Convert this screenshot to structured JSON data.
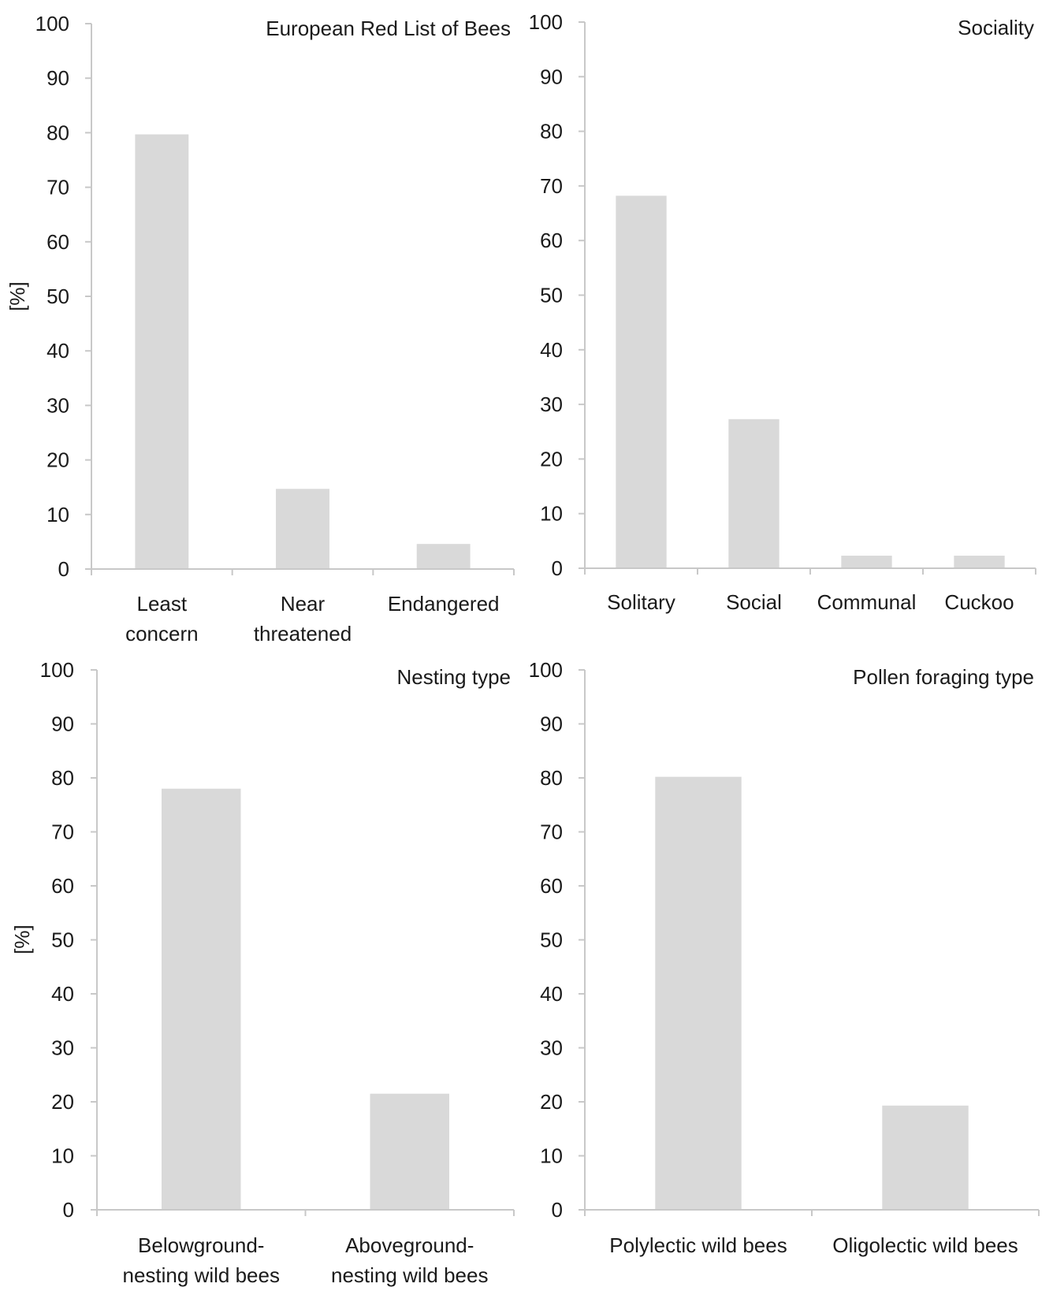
{
  "chart_data": [
    {
      "type": "bar",
      "title": "European Red List of Bees",
      "ylabel": "[%]",
      "ylim": [
        0,
        100
      ],
      "yticks": [
        "0",
        "10",
        "20",
        "30",
        "40",
        "50",
        "60",
        "70",
        "80",
        "90",
        "100"
      ],
      "categories": [
        [
          "Least",
          "concern"
        ],
        [
          "Near",
          "threatened"
        ],
        [
          "Endangered"
        ]
      ],
      "values": [
        79.7,
        14.7,
        4.6
      ],
      "bar_color": "#d9d9d9"
    },
    {
      "type": "bar",
      "title": "Sociality",
      "ylabel": "",
      "ylim": [
        0,
        100
      ],
      "yticks": [
        "0",
        "10",
        "20",
        "30",
        "40",
        "50",
        "60",
        "70",
        "80",
        "90",
        "100"
      ],
      "categories": [
        [
          "Solitary"
        ],
        [
          "Social"
        ],
        [
          "Communal"
        ],
        [
          "Cuckoo"
        ]
      ],
      "values": [
        68.2,
        27.3,
        2.3,
        2.3
      ],
      "bar_color": "#d9d9d9"
    },
    {
      "type": "bar",
      "title": "Nesting type",
      "ylabel": "[%]",
      "ylim": [
        0,
        100
      ],
      "yticks": [
        "0",
        "10",
        "20",
        "30",
        "40",
        "50",
        "60",
        "70",
        "80",
        "90",
        "100"
      ],
      "categories": [
        [
          "Belowground-",
          "nesting wild bees"
        ],
        [
          "Aboveground-",
          "nesting wild bees"
        ]
      ],
      "values": [
        78.0,
        21.5
      ],
      "bar_color": "#d9d9d9"
    },
    {
      "type": "bar",
      "title": "Pollen foraging type",
      "ylabel": "",
      "ylim": [
        0,
        100
      ],
      "yticks": [
        "0",
        "10",
        "20",
        "30",
        "40",
        "50",
        "60",
        "70",
        "80",
        "90",
        "100"
      ],
      "categories": [
        [
          "Polylectic wild bees"
        ],
        [
          "Oligolectic wild bees"
        ]
      ],
      "values": [
        80.2,
        19.3
      ],
      "bar_color": "#d9d9d9"
    }
  ]
}
